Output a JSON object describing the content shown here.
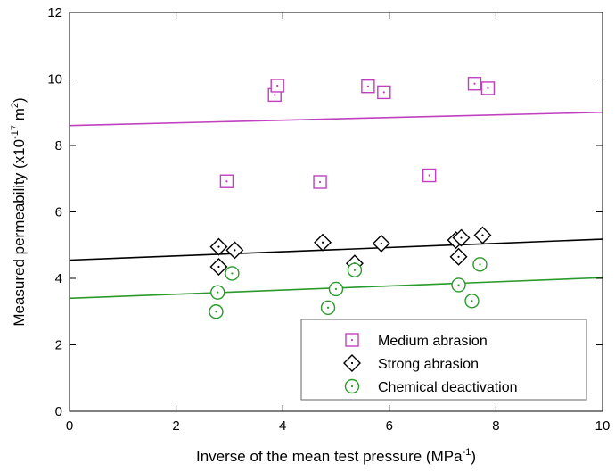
{
  "chart_data": {
    "type": "scatter",
    "xlabel": "Inverse of the mean test pressure (MPa",
    "xlabel_sup": "-1",
    "xlabel_suffix": ")",
    "ylabel": "Measured permeability (x10",
    "ylabel_sup": "-17",
    "ylabel_mid": " m",
    "ylabel_sup2": "2",
    "ylabel_suffix": ")",
    "xlim": [
      0,
      10
    ],
    "ylim": [
      0,
      12
    ],
    "xticks": [
      0,
      2,
      4,
      6,
      8,
      10
    ],
    "yticks": [
      0,
      2,
      4,
      6,
      8,
      10,
      12
    ],
    "grid": false,
    "legend_position": "bottom-right",
    "series": [
      {
        "name": "Medium abrasion",
        "marker": "square",
        "color": "#c040c0",
        "points": [
          {
            "x": 2.95,
            "y": 6.92
          },
          {
            "x": 3.85,
            "y": 9.52
          },
          {
            "x": 3.9,
            "y": 9.8
          },
          {
            "x": 4.7,
            "y": 6.9
          },
          {
            "x": 5.6,
            "y": 9.78
          },
          {
            "x": 5.9,
            "y": 9.6
          },
          {
            "x": 6.75,
            "y": 7.1
          },
          {
            "x": 7.6,
            "y": 9.86
          },
          {
            "x": 7.85,
            "y": 9.72
          }
        ],
        "fit": {
          "x": [
            0,
            10
          ],
          "y": [
            8.6,
            9.0
          ]
        }
      },
      {
        "name": "Strong abrasion",
        "marker": "diamond",
        "color": "#000000",
        "points": [
          {
            "x": 2.8,
            "y": 4.95
          },
          {
            "x": 2.8,
            "y": 4.35
          },
          {
            "x": 3.1,
            "y": 4.85
          },
          {
            "x": 4.75,
            "y": 5.08
          },
          {
            "x": 5.35,
            "y": 4.45
          },
          {
            "x": 5.85,
            "y": 5.05
          },
          {
            "x": 7.25,
            "y": 5.15
          },
          {
            "x": 7.35,
            "y": 5.22
          },
          {
            "x": 7.3,
            "y": 4.65
          },
          {
            "x": 7.75,
            "y": 5.3
          }
        ],
        "fit": {
          "x": [
            0,
            10
          ],
          "y": [
            4.55,
            5.18
          ]
        }
      },
      {
        "name": "Chemical deactivation",
        "marker": "circle",
        "color": "#2a9a2a",
        "points": [
          {
            "x": 2.75,
            "y": 3.0
          },
          {
            "x": 2.78,
            "y": 3.58
          },
          {
            "x": 3.05,
            "y": 4.15
          },
          {
            "x": 4.85,
            "y": 3.12
          },
          {
            "x": 5.0,
            "y": 3.68
          },
          {
            "x": 5.35,
            "y": 4.25
          },
          {
            "x": 7.3,
            "y": 3.8
          },
          {
            "x": 7.55,
            "y": 3.32
          },
          {
            "x": 7.7,
            "y": 4.42
          }
        ],
        "fit": {
          "x": [
            0,
            10
          ],
          "y": [
            3.4,
            4.02
          ]
        }
      }
    ]
  }
}
